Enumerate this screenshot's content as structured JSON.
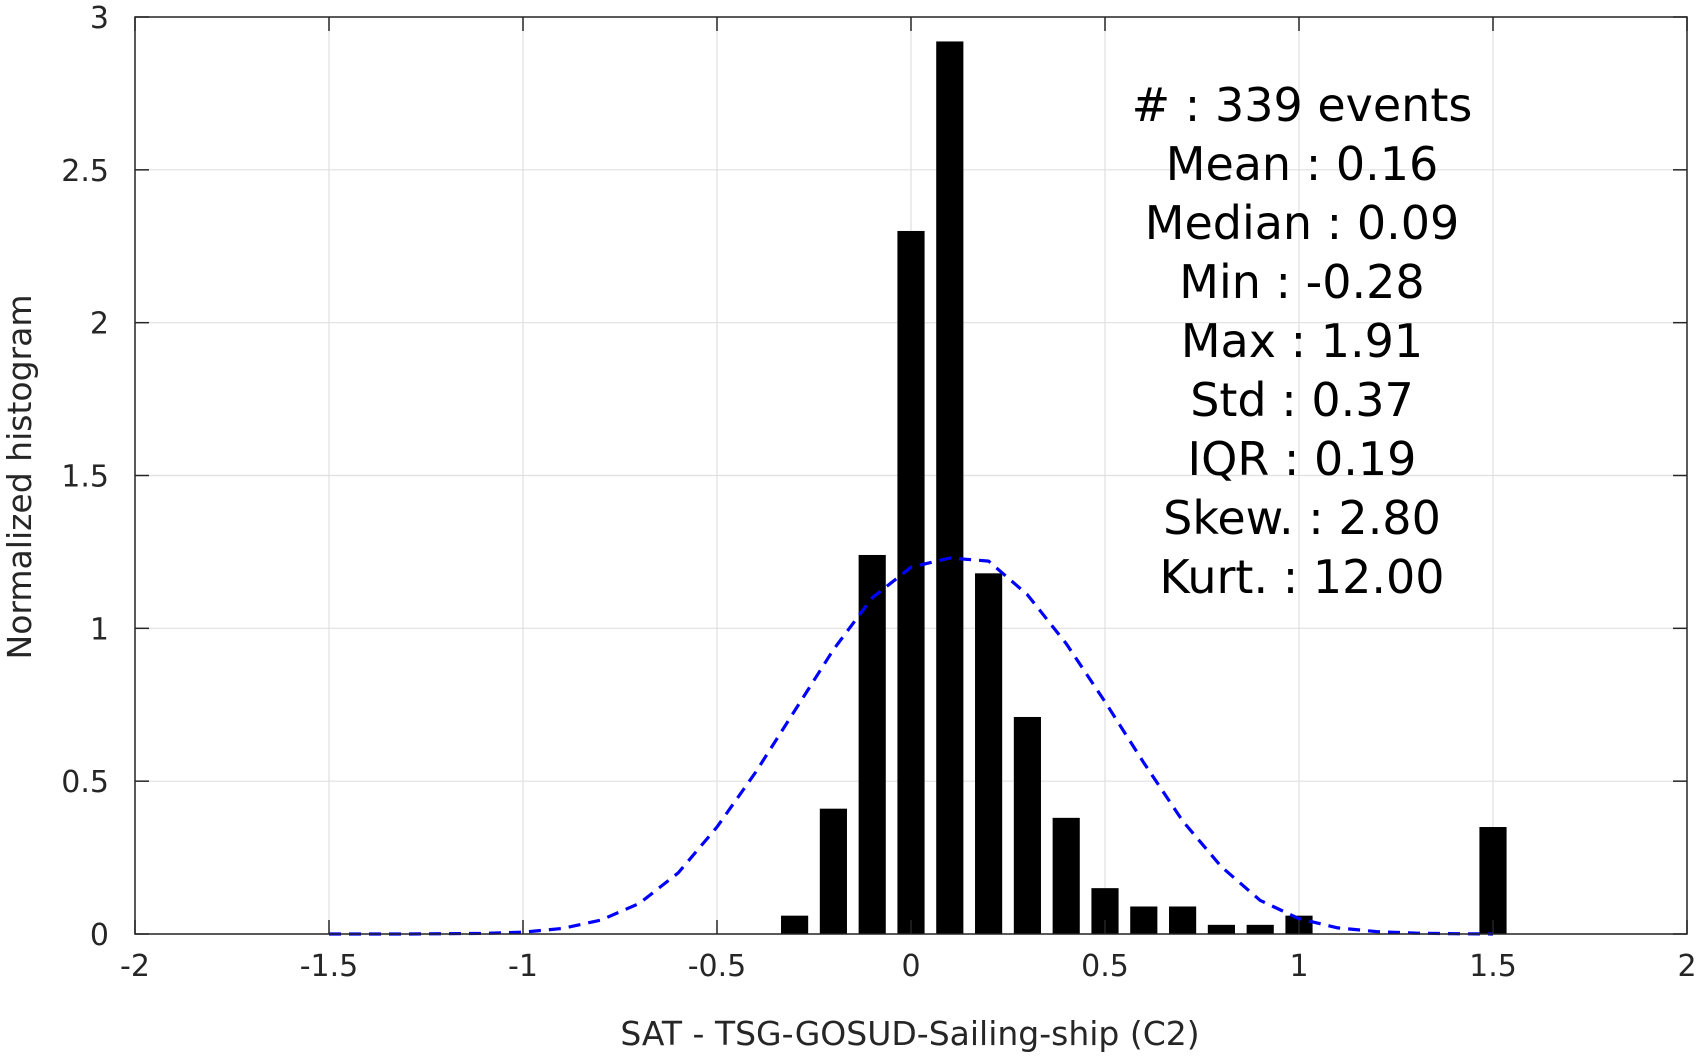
{
  "chart_data": {
    "type": "bar",
    "title": "",
    "xlabel": "SAT - TSG-GOSUD-Sailing-ship (C2)",
    "ylabel": "Normalized histogram",
    "xlim": [
      -2,
      2
    ],
    "ylim": [
      0,
      3
    ],
    "bar_width": 0.07,
    "grid": true,
    "x_ticks": [
      -2,
      -1.5,
      -1,
      -0.5,
      0,
      0.5,
      1,
      1.5,
      2
    ],
    "x_tick_labels": [
      "-2",
      "-1.5",
      "-1",
      "-0.5",
      "0",
      "0.5",
      "1",
      "1.5",
      "2"
    ],
    "y_ticks": [
      0,
      0.5,
      1,
      1.5,
      2,
      2.5,
      3
    ],
    "y_tick_labels": [
      "0",
      "0.5",
      "1",
      "1.5",
      "2",
      "2.5",
      "3"
    ],
    "series": [
      {
        "type": "bar",
        "color": "#000000",
        "x": [
          -0.3,
          -0.2,
          -0.1,
          0.0,
          0.1,
          0.2,
          0.3,
          0.4,
          0.5,
          0.6,
          0.7,
          0.8,
          0.9,
          1.0,
          1.5
        ],
        "values": [
          0.06,
          0.41,
          1.24,
          2.3,
          2.92,
          1.18,
          0.71,
          0.38,
          0.15,
          0.09,
          0.09,
          0.03,
          0.03,
          0.06,
          0.35
        ]
      },
      {
        "type": "line",
        "style": "dashed",
        "color": "#0000ff",
        "x": [
          -1.5,
          -1.3,
          -1.1,
          -1.0,
          -0.9,
          -0.8,
          -0.7,
          -0.6,
          -0.5,
          -0.4,
          -0.3,
          -0.2,
          -0.1,
          0.0,
          0.1,
          0.2,
          0.3,
          0.4,
          0.5,
          0.6,
          0.7,
          0.8,
          0.9,
          1.0,
          1.1,
          1.2,
          1.3,
          1.4,
          1.5
        ],
        "values": [
          0.0,
          0.0,
          0.002,
          0.006,
          0.018,
          0.045,
          0.1,
          0.2,
          0.35,
          0.53,
          0.73,
          0.93,
          1.1,
          1.2,
          1.23,
          1.22,
          1.11,
          0.95,
          0.76,
          0.56,
          0.37,
          0.22,
          0.11,
          0.05,
          0.02,
          0.008,
          0.003,
          0.001,
          0.0
        ]
      }
    ],
    "stats": [
      {
        "label": "#  ",
        "value": "339 events"
      },
      {
        "label": "Mean ",
        "value": "0.16"
      },
      {
        "label": "Median ",
        "value": "0.09"
      },
      {
        "label": "Min ",
        "value": "-0.28"
      },
      {
        "label": "Max ",
        "value": "1.91"
      },
      {
        "label": "Std ",
        "value": "0.37"
      },
      {
        "label": "IQR ",
        "value": "0.19"
      },
      {
        "label": "Skew. ",
        "value": "2.80"
      },
      {
        "label": "Kurt. ",
        "value": "12.00"
      }
    ]
  }
}
